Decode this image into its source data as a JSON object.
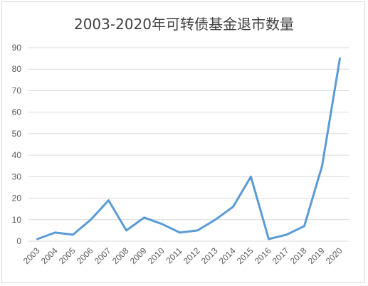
{
  "chart_data": {
    "type": "line",
    "title": "2003-2020年可转债基金退市数量",
    "x": [
      "2003",
      "2004",
      "2005",
      "2006",
      "2007",
      "2008",
      "2009",
      "2010",
      "2011",
      "2012",
      "2013",
      "2014",
      "2015",
      "2016",
      "2017",
      "2018",
      "2019",
      "2020"
    ],
    "series": [
      {
        "values": [
          1,
          4,
          3,
          10,
          19,
          5,
          11,
          8,
          4,
          5,
          10,
          16,
          30,
          1,
          3,
          7,
          35,
          85
        ]
      }
    ],
    "ylim": [
      0,
      90
    ],
    "yticks": [
      0,
      10,
      20,
      30,
      40,
      50,
      60,
      70,
      80,
      90
    ],
    "grid": true,
    "line_color": "#5b9bd5"
  }
}
